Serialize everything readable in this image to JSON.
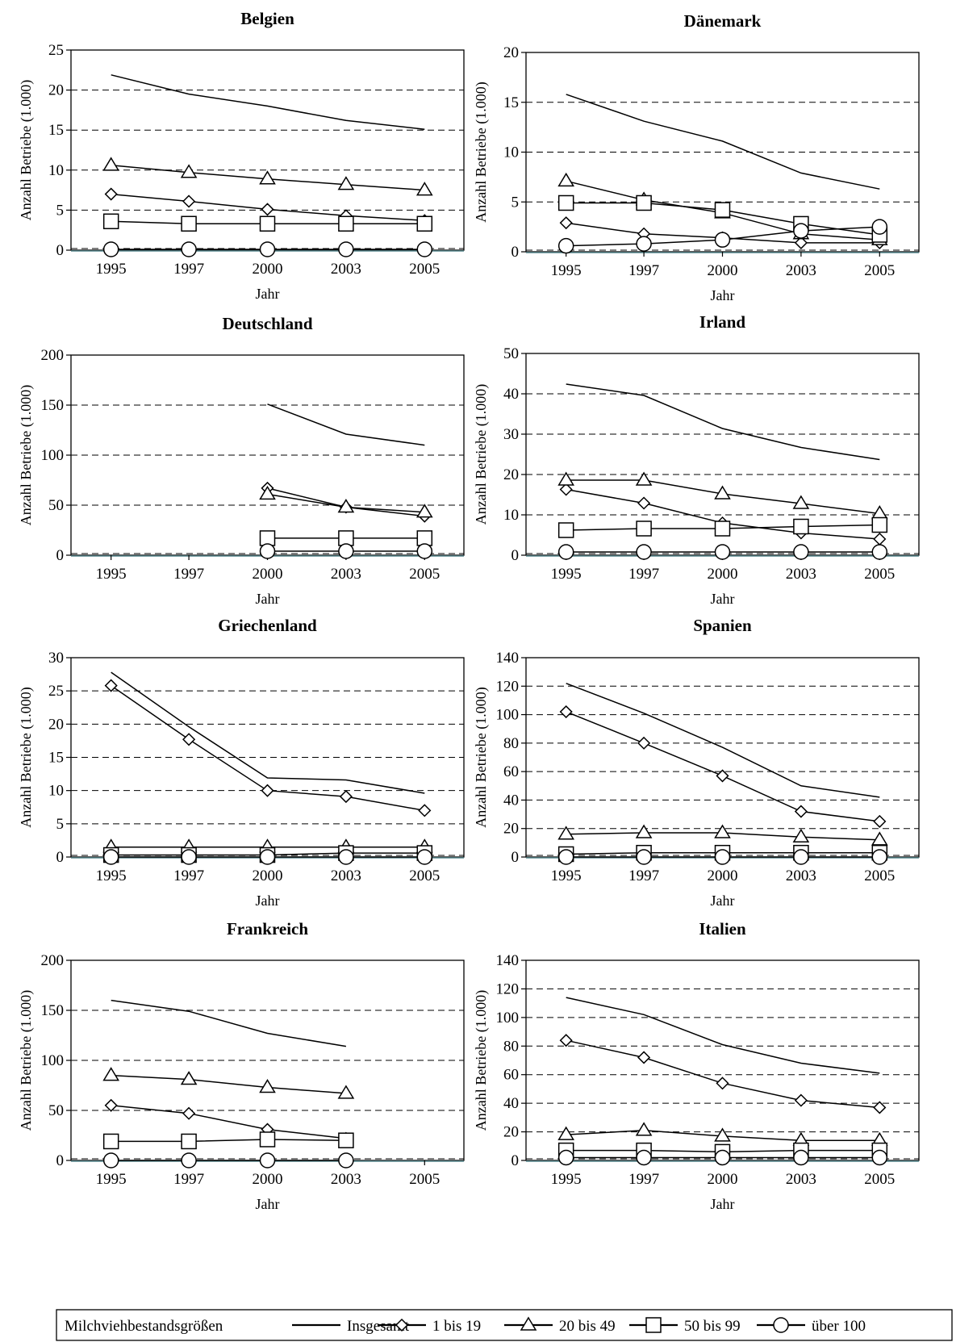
{
  "legend": {
    "title": "Milchviehbestandsgrößen",
    "items": [
      "Insgesamt",
      "1 bis 19",
      "20 bis 49",
      "50 bis 99",
      "über 100"
    ]
  },
  "chart_data": [
    {
      "type": "line",
      "title": "Belgien",
      "xlabel": "Jahr",
      "ylabel": "Anzahl Betriebe (1.000)",
      "categories": [
        "1995",
        "1997",
        "2000",
        "2003",
        "2005"
      ],
      "ylim": [
        0,
        25
      ],
      "yticks": [
        0,
        5,
        10,
        15,
        20,
        25
      ],
      "grid": "horizontal dashed",
      "series": [
        {
          "name": "Insgesamt",
          "marker": "none",
          "values": [
            21.9,
            19.5,
            18.0,
            16.2,
            15.1
          ]
        },
        {
          "name": "1 bis 19",
          "marker": "diamond",
          "values": [
            7.0,
            6.1,
            5.1,
            4.3,
            3.7
          ]
        },
        {
          "name": "20 bis 49",
          "marker": "triangle",
          "values": [
            10.6,
            9.7,
            8.9,
            8.2,
            7.5
          ]
        },
        {
          "name": "50 bis 99",
          "marker": "square",
          "values": [
            3.6,
            3.3,
            3.3,
            3.3,
            3.3
          ]
        },
        {
          "name": "über 100",
          "marker": "circle",
          "values": [
            0.1,
            0.1,
            0.1,
            0.1,
            0.1
          ]
        }
      ]
    },
    {
      "type": "line",
      "title": "Dänemark",
      "xlabel": "Jahr",
      "ylabel": "Anzahl Betriebe (1.000)",
      "categories": [
        "1995",
        "1997",
        "2000",
        "2003",
        "2005"
      ],
      "ylim": [
        0,
        20
      ],
      "yticks": [
        0,
        5,
        10,
        15,
        20
      ],
      "grid": "horizontal dashed",
      "series": [
        {
          "name": "Insgesamt",
          "marker": "none",
          "values": [
            15.8,
            13.1,
            11.1,
            7.9,
            6.3
          ]
        },
        {
          "name": "1 bis 19",
          "marker": "diamond",
          "values": [
            2.9,
            1.8,
            1.4,
            0.9,
            0.9
          ]
        },
        {
          "name": "20 bis 49",
          "marker": "triangle",
          "values": [
            7.1,
            5.2,
            3.9,
            1.8,
            1.2
          ]
        },
        {
          "name": "50 bis 99",
          "marker": "square",
          "values": [
            4.9,
            4.9,
            4.2,
            2.8,
            1.7
          ]
        },
        {
          "name": "über 100",
          "marker": "circle",
          "values": [
            0.6,
            0.8,
            1.2,
            2.1,
            2.5
          ]
        }
      ]
    },
    {
      "type": "line",
      "title": "Deutschland",
      "xlabel": "Jahr",
      "ylabel": "Anzahl Betriebe (1.000)",
      "categories": [
        "1995",
        "1997",
        "2000",
        "2003",
        "2005"
      ],
      "ylim": [
        0,
        200
      ],
      "yticks": [
        0,
        50,
        100,
        150,
        200
      ],
      "grid": "horizontal dashed",
      "series": [
        {
          "name": "Insgesamt",
          "marker": "none",
          "values": [
            null,
            null,
            151,
            121,
            110
          ]
        },
        {
          "name": "1 bis 19",
          "marker": "diamond",
          "values": [
            null,
            null,
            67,
            48,
            39
          ]
        },
        {
          "name": "20 bis 49",
          "marker": "triangle",
          "values": [
            null,
            null,
            61,
            48,
            43
          ]
        },
        {
          "name": "50 bis 99",
          "marker": "square",
          "values": [
            null,
            null,
            17,
            17,
            17
          ]
        },
        {
          "name": "über 100",
          "marker": "circle",
          "values": [
            null,
            null,
            4,
            4,
            4
          ]
        }
      ]
    },
    {
      "type": "line",
      "title": "Irland",
      "xlabel": "Jahr",
      "ylabel": "Anzahl Betriebe (1.000)",
      "categories": [
        "1995",
        "1997",
        "2000",
        "2003",
        "2005"
      ],
      "ylim": [
        0,
        50
      ],
      "yticks": [
        0,
        10,
        20,
        30,
        40,
        50
      ],
      "grid": "horizontal dashed",
      "series": [
        {
          "name": "Insgesamt",
          "marker": "none",
          "values": [
            42.4,
            39.6,
            31.4,
            26.7,
            23.7
          ]
        },
        {
          "name": "1 bis 19",
          "marker": "diamond",
          "values": [
            16.3,
            12.9,
            8.0,
            5.5,
            4.0
          ]
        },
        {
          "name": "20 bis 49",
          "marker": "triangle",
          "values": [
            18.6,
            18.6,
            15.2,
            12.8,
            10.3
          ]
        },
        {
          "name": "50 bis 99",
          "marker": "square",
          "values": [
            6.2,
            6.6,
            6.6,
            7.1,
            7.5
          ]
        },
        {
          "name": "über 100",
          "marker": "circle",
          "values": [
            0.8,
            0.8,
            0.8,
            0.8,
            0.8
          ]
        }
      ]
    },
    {
      "type": "line",
      "title": "Griechenland",
      "xlabel": "Jahr",
      "ylabel": "Anzahl Betriebe (1.000)",
      "categories": [
        "1995",
        "1997",
        "2000",
        "2003",
        "2005"
      ],
      "ylim": [
        0,
        30
      ],
      "yticks": [
        0,
        5,
        10,
        15,
        20,
        25,
        30
      ],
      "grid": "horizontal dashed",
      "series": [
        {
          "name": "Insgesamt",
          "marker": "none",
          "values": [
            27.8,
            19.6,
            11.9,
            11.6,
            9.6
          ]
        },
        {
          "name": "1 bis 19",
          "marker": "diamond",
          "values": [
            25.8,
            17.7,
            10.0,
            9.1,
            7.0
          ]
        },
        {
          "name": "20 bis 49",
          "marker": "triangle",
          "values": [
            1.5,
            1.5,
            1.5,
            1.5,
            1.5
          ]
        },
        {
          "name": "50 bis 99",
          "marker": "square",
          "values": [
            0.3,
            0.3,
            0.3,
            0.6,
            0.6
          ]
        },
        {
          "name": "über 100",
          "marker": "circle",
          "values": [
            0.0,
            0.0,
            0.0,
            0.0,
            0.0
          ]
        }
      ]
    },
    {
      "type": "line",
      "title": "Spanien",
      "xlabel": "Jahr",
      "ylabel": "Anzahl Betriebe (1.000)",
      "categories": [
        "1995",
        "1997",
        "2000",
        "2003",
        "2005"
      ],
      "ylim": [
        0,
        140
      ],
      "yticks": [
        0,
        20,
        40,
        60,
        80,
        100,
        120,
        140
      ],
      "grid": "horizontal dashed",
      "series": [
        {
          "name": "Insgesamt",
          "marker": "none",
          "values": [
            122,
            101,
            77,
            50,
            42
          ]
        },
        {
          "name": "1 bis 19",
          "marker": "diamond",
          "values": [
            102,
            80,
            57,
            32,
            25
          ]
        },
        {
          "name": "20 bis 49",
          "marker": "triangle",
          "values": [
            16,
            17,
            17,
            14,
            12
          ]
        },
        {
          "name": "50 bis 99",
          "marker": "square",
          "values": [
            2,
            3,
            3,
            3,
            3
          ]
        },
        {
          "name": "über 100",
          "marker": "circle",
          "values": [
            0,
            0,
            0,
            0,
            0
          ]
        }
      ]
    },
    {
      "type": "line",
      "title": "Frankreich",
      "xlabel": "Jahr",
      "ylabel": "Anzahl Betriebe (1.000)",
      "categories": [
        "1995",
        "1997",
        "2000",
        "2003",
        "2005"
      ],
      "ylim": [
        0,
        200
      ],
      "yticks": [
        0,
        50,
        100,
        150,
        200
      ],
      "grid": "horizontal dashed",
      "series": [
        {
          "name": "Insgesamt",
          "marker": "none",
          "values": [
            160,
            149,
            127,
            114,
            null
          ]
        },
        {
          "name": "1 bis 19",
          "marker": "diamond",
          "values": [
            55,
            47,
            31,
            22,
            null
          ]
        },
        {
          "name": "20 bis 49",
          "marker": "triangle",
          "values": [
            85,
            81,
            73,
            67,
            null
          ]
        },
        {
          "name": "50 bis 99",
          "marker": "square",
          "values": [
            19,
            19,
            21,
            20,
            null
          ]
        },
        {
          "name": "über 100",
          "marker": "circle",
          "values": [
            0,
            0,
            0,
            0,
            null
          ]
        }
      ]
    },
    {
      "type": "line",
      "title": "Italien",
      "xlabel": "Jahr",
      "ylabel": "Anzahl Betriebe (1.000)",
      "categories": [
        "1995",
        "1997",
        "2000",
        "2003",
        "2005"
      ],
      "ylim": [
        0,
        140
      ],
      "yticks": [
        0,
        20,
        40,
        60,
        80,
        100,
        120,
        140
      ],
      "grid": "horizontal dashed",
      "series": [
        {
          "name": "Insgesamt",
          "marker": "none",
          "values": [
            114,
            102,
            81,
            68,
            61
          ]
        },
        {
          "name": "1 bis 19",
          "marker": "diamond",
          "values": [
            84,
            72,
            54,
            42,
            37
          ]
        },
        {
          "name": "20 bis 49",
          "marker": "triangle",
          "values": [
            18,
            21,
            17,
            14,
            14
          ]
        },
        {
          "name": "50 bis 99",
          "marker": "square",
          "values": [
            7,
            7,
            6,
            7,
            7
          ]
        },
        {
          "name": "über 100",
          "marker": "circle",
          "values": [
            2,
            2,
            2,
            2,
            2
          ]
        }
      ]
    }
  ]
}
